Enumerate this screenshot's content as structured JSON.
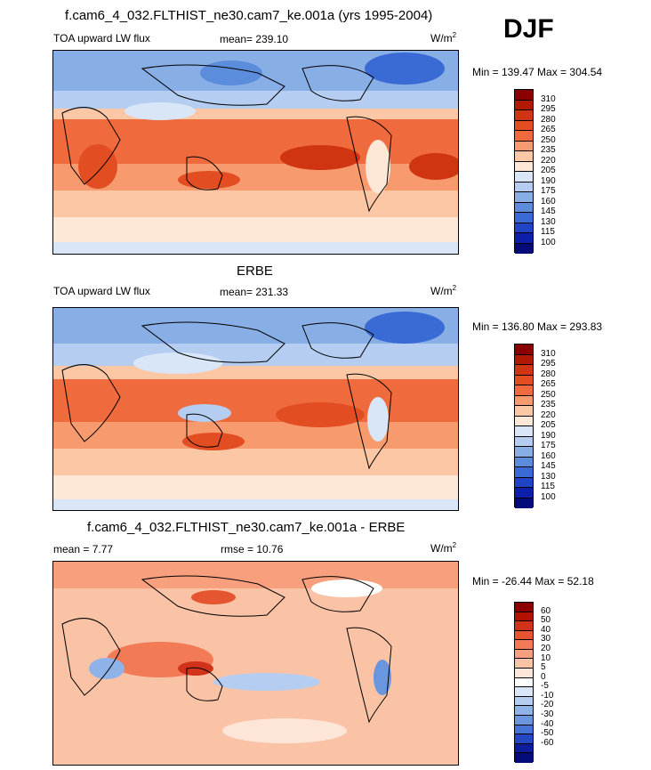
{
  "header": {
    "season": "DJF"
  },
  "panels": [
    {
      "title": "f.cam6_4_032.FLTHIST_ne30.cam7_ke.001a (yrs 1995-2004)",
      "left_label": "TOA upward LW flux",
      "center_label": "mean= 239.10",
      "units_base": "W/m",
      "units_exp": "2",
      "minmax": "Min = 139.47 Max = 304.54",
      "colorbar_ticks": [
        "310",
        "295",
        "280",
        "265",
        "250",
        "235",
        "220",
        "205",
        "190",
        "175",
        "160",
        "145",
        "130",
        "115",
        "100"
      ]
    },
    {
      "title": "ERBE",
      "left_label": "TOA upward LW flux",
      "center_label": "mean= 231.33",
      "units_base": "W/m",
      "units_exp": "2",
      "minmax": "Min = 136.80 Max = 293.83",
      "colorbar_ticks": [
        "310",
        "295",
        "280",
        "265",
        "250",
        "235",
        "220",
        "205",
        "190",
        "175",
        "160",
        "145",
        "130",
        "115",
        "100"
      ]
    },
    {
      "title": "f.cam6_4_032.FLTHIST_ne30.cam7_ke.001a - ERBE",
      "left_label": "mean =   7.77",
      "center_label": "rmse =  10.76",
      "units_base": "W/m",
      "units_exp": "2",
      "minmax": "Min = -26.44 Max =  52.18",
      "colorbar_ticks": [
        "60",
        "50",
        "40",
        "30",
        "20",
        "10",
        "5",
        "0",
        "-5",
        "-10",
        "-20",
        "-30",
        "-40",
        "-50",
        "-60"
      ]
    }
  ],
  "colors": {
    "flux_scale": [
      "#8b0000",
      "#b01a00",
      "#cf3510",
      "#e24e22",
      "#ef6a3d",
      "#f79a6e",
      "#fbc7a4",
      "#fde8d8",
      "#d9e6f7",
      "#b4cdf0",
      "#88aee6",
      "#5b8ddc",
      "#3a6ad4",
      "#1f45c4",
      "#0b1fa8",
      "#050b78"
    ],
    "diff_scale": [
      "#8b0000",
      "#b31200",
      "#d1321a",
      "#e5552f",
      "#f27a55",
      "#f8a07e",
      "#fbc3a6",
      "#fde6d8",
      "#ffffff",
      "#d9e6f7",
      "#b4cdf0",
      "#8fb3e8",
      "#6a96df",
      "#4673d6",
      "#2448c2",
      "#0c1d9c",
      "#050b78"
    ]
  }
}
